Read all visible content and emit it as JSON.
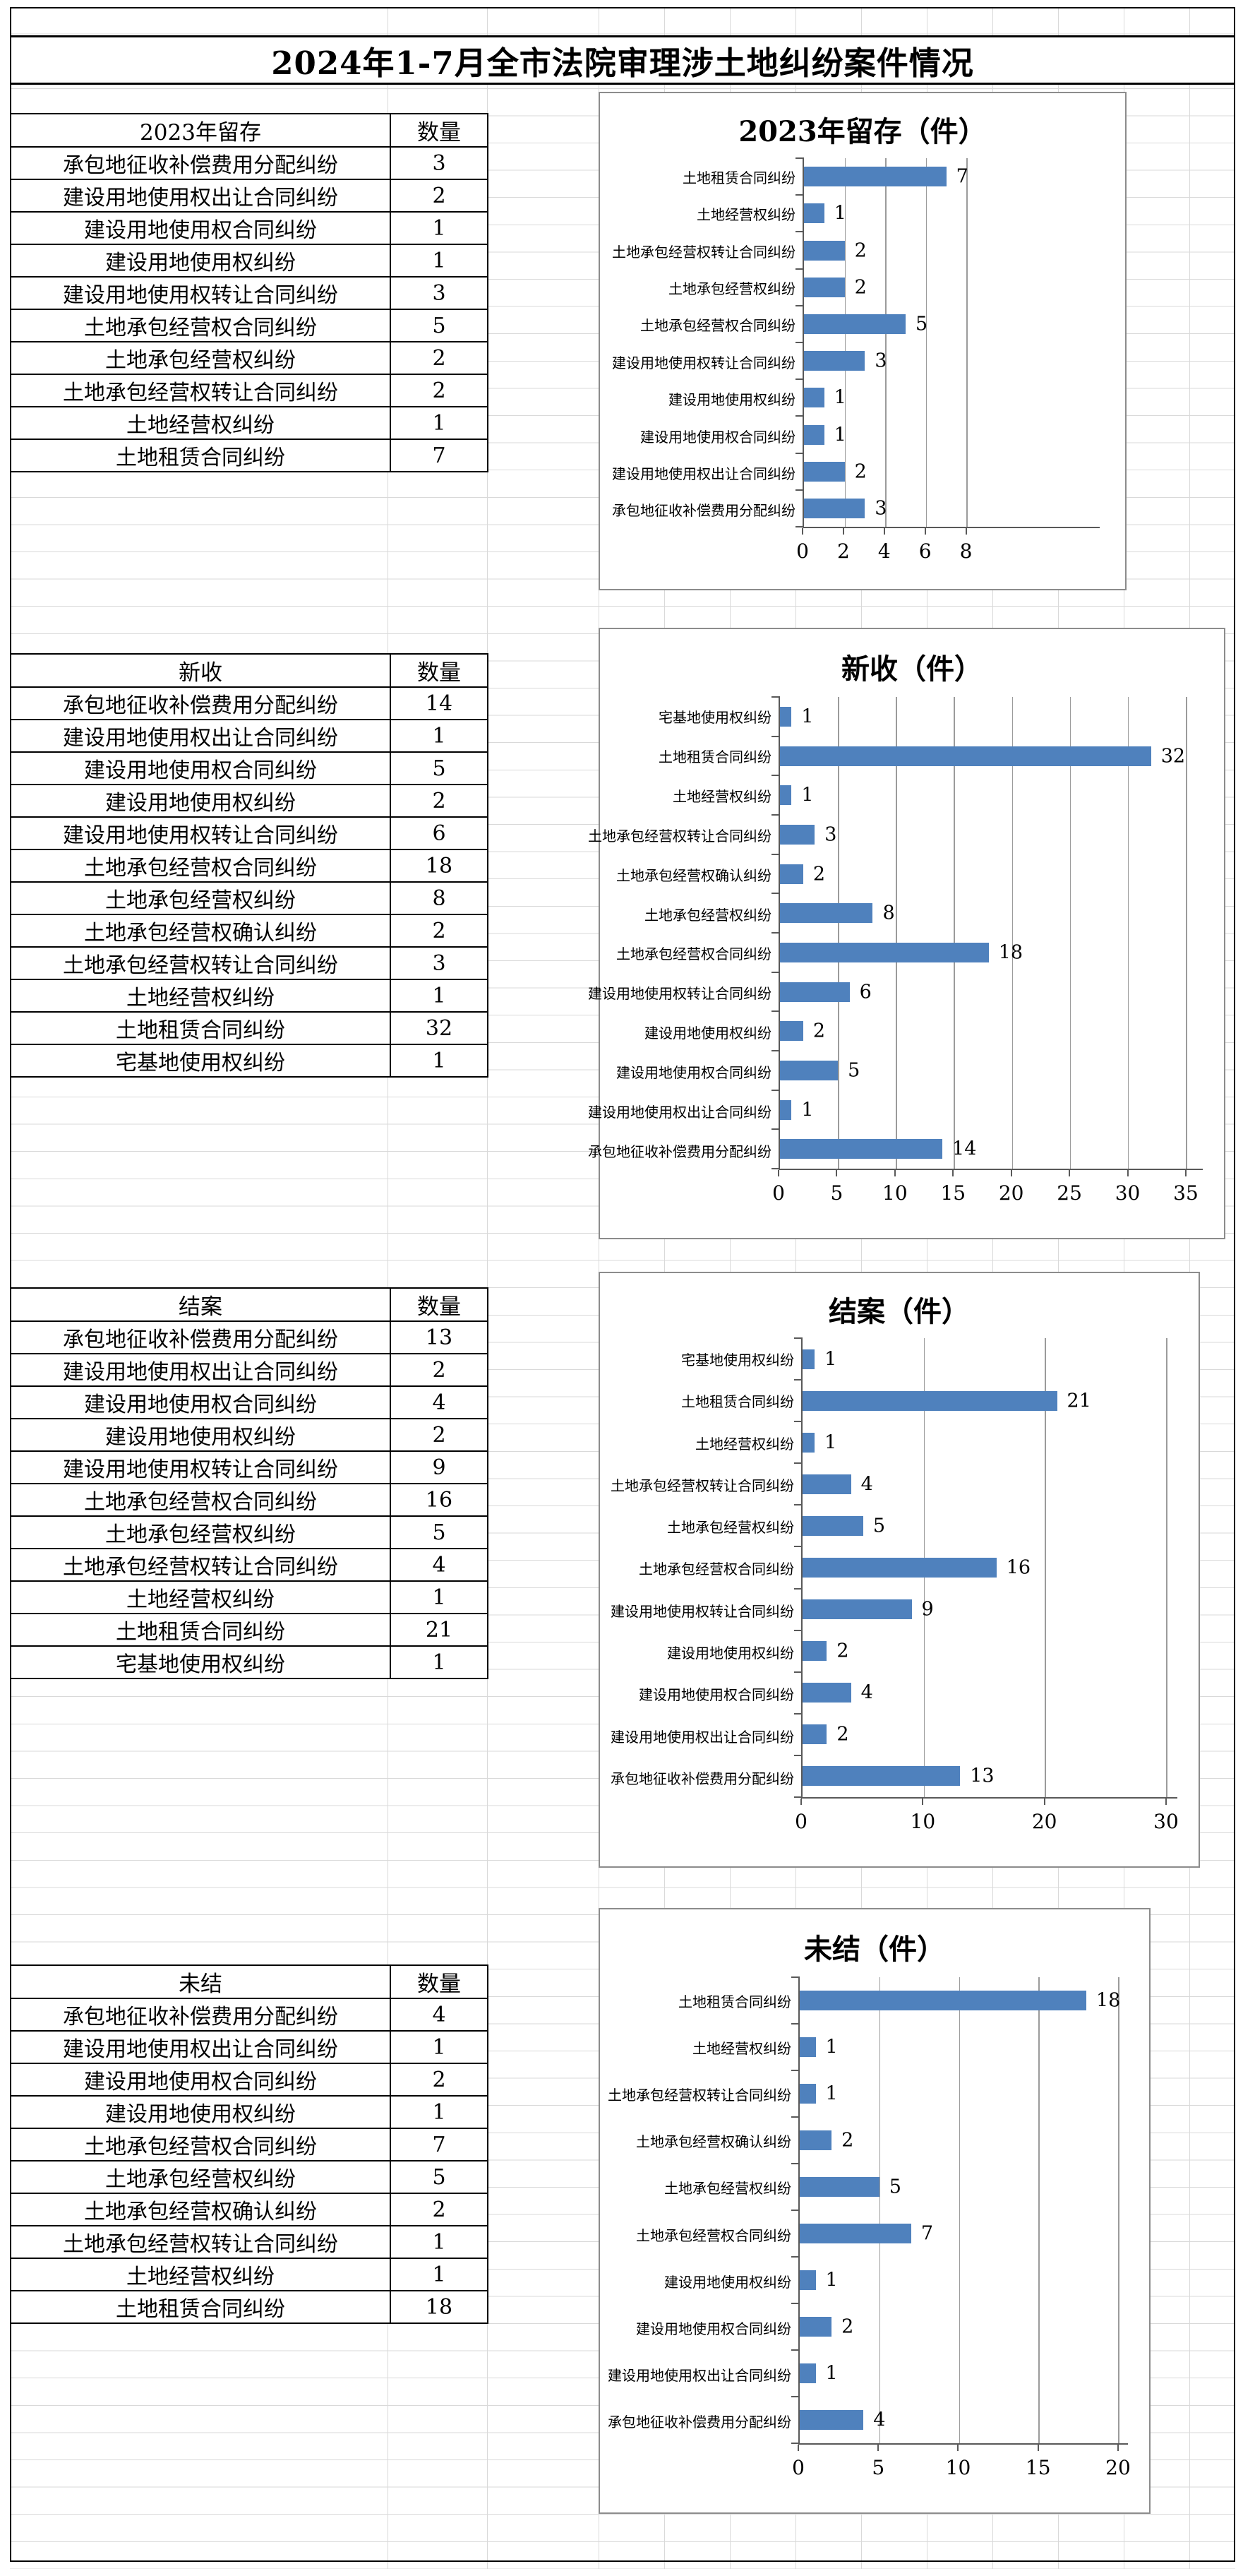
{
  "sheet": {
    "title": "2024年1-7月全市法院审理涉土地纠纷案件情况"
  },
  "sections": [
    {
      "table_title": "2023年留存",
      "qty_header": "数量",
      "rows": [
        {
          "label": "承包地征收补偿费用分配纠纷",
          "value": 3
        },
        {
          "label": "建设用地使用权出让合同纠纷",
          "value": 2
        },
        {
          "label": "建设用地使用权合同纠纷",
          "value": 1
        },
        {
          "label": "建设用地使用权纠纷",
          "value": 1
        },
        {
          "label": "建设用地使用权转让合同纠纷",
          "value": 3
        },
        {
          "label": "土地承包经营权合同纠纷",
          "value": 5
        },
        {
          "label": "土地承包经营权纠纷",
          "value": 2
        },
        {
          "label": "土地承包经营权转让合同纠纷",
          "value": 2
        },
        {
          "label": "土地经营权纠纷",
          "value": 1
        },
        {
          "label": "土地租赁合同纠纷",
          "value": 7
        }
      ]
    },
    {
      "table_title": "新收",
      "qty_header": "数量",
      "rows": [
        {
          "label": "承包地征收补偿费用分配纠纷",
          "value": 14
        },
        {
          "label": "建设用地使用权出让合同纠纷",
          "value": 1
        },
        {
          "label": "建设用地使用权合同纠纷",
          "value": 5
        },
        {
          "label": "建设用地使用权纠纷",
          "value": 2
        },
        {
          "label": "建设用地使用权转让合同纠纷",
          "value": 6
        },
        {
          "label": "土地承包经营权合同纠纷",
          "value": 18
        },
        {
          "label": "土地承包经营权纠纷",
          "value": 8
        },
        {
          "label": "土地承包经营权确认纠纷",
          "value": 2
        },
        {
          "label": "土地承包经营权转让合同纠纷",
          "value": 3
        },
        {
          "label": "土地经营权纠纷",
          "value": 1
        },
        {
          "label": "土地租赁合同纠纷",
          "value": 32
        },
        {
          "label": "宅基地使用权纠纷",
          "value": 1
        }
      ]
    },
    {
      "table_title": "结案",
      "qty_header": "数量",
      "rows": [
        {
          "label": "承包地征收补偿费用分配纠纷",
          "value": 13
        },
        {
          "label": "建设用地使用权出让合同纠纷",
          "value": 2
        },
        {
          "label": "建设用地使用权合同纠纷",
          "value": 4
        },
        {
          "label": "建设用地使用权纠纷",
          "value": 2
        },
        {
          "label": "建设用地使用权转让合同纠纷",
          "value": 9
        },
        {
          "label": "土地承包经营权合同纠纷",
          "value": 16
        },
        {
          "label": "土地承包经营权纠纷",
          "value": 5
        },
        {
          "label": "土地承包经营权转让合同纠纷",
          "value": 4
        },
        {
          "label": "土地经营权纠纷",
          "value": 1
        },
        {
          "label": "土地租赁合同纠纷",
          "value": 21
        },
        {
          "label": "宅基地使用权纠纷",
          "value": 1
        }
      ]
    },
    {
      "table_title": "未结",
      "qty_header": "数量",
      "rows": [
        {
          "label": "承包地征收补偿费用分配纠纷",
          "value": 4
        },
        {
          "label": "建设用地使用权出让合同纠纷",
          "value": 1
        },
        {
          "label": "建设用地使用权合同纠纷",
          "value": 2
        },
        {
          "label": "建设用地使用权纠纷",
          "value": 1
        },
        {
          "label": "土地承包经营权合同纠纷",
          "value": 7
        },
        {
          "label": "土地承包经营权纠纷",
          "value": 5
        },
        {
          "label": "土地承包经营权确认纠纷",
          "value": 2
        },
        {
          "label": "土地承包经营权转让合同纠纷",
          "value": 1
        },
        {
          "label": "土地经营权纠纷",
          "value": 1
        },
        {
          "label": "土地租赁合同纠纷",
          "value": 18
        }
      ]
    }
  ],
  "chart_data": [
    {
      "type": "bar",
      "orientation": "horizontal",
      "title": "2023年留存（件）",
      "categories": [
        "土地租赁合同纠纷",
        "土地经营权纠纷",
        "土地承包经营权转让合同纠纷",
        "土地承包经营权纠纷",
        "土地承包经营权合同纠纷",
        "建设用地使用权转让合同纠纷",
        "建设用地使用权纠纷",
        "建设用地使用权合同纠纷",
        "建设用地使用权出让合同纠纷",
        "承包地征收补偿费用分配纠纷"
      ],
      "values": [
        7,
        1,
        2,
        2,
        5,
        3,
        1,
        1,
        2,
        3
      ],
      "xlim": [
        0,
        8
      ],
      "xtick_step": 2,
      "grid": true,
      "legend": "none",
      "bar_color": "#4F81BD"
    },
    {
      "type": "bar",
      "orientation": "horizontal",
      "title": "新收（件）",
      "categories": [
        "宅基地使用权纠纷",
        "土地租赁合同纠纷",
        "土地经营权纠纷",
        "土地承包经营权转让合同纠纷",
        "土地承包经营权确认纠纷",
        "土地承包经营权纠纷",
        "土地承包经营权合同纠纷",
        "建设用地使用权转让合同纠纷",
        "建设用地使用权纠纷",
        "建设用地使用权合同纠纷",
        "建设用地使用权出让合同纠纷",
        "承包地征收补偿费用分配纠纷"
      ],
      "values": [
        1,
        32,
        1,
        3,
        2,
        8,
        18,
        6,
        2,
        5,
        1,
        14
      ],
      "xlim": [
        0,
        35
      ],
      "xtick_step": 5,
      "grid": true,
      "legend": "none",
      "bar_color": "#4F81BD"
    },
    {
      "type": "bar",
      "orientation": "horizontal",
      "title": "结案（件）",
      "categories": [
        "宅基地使用权纠纷",
        "土地租赁合同纠纷",
        "土地经营权纠纷",
        "土地承包经营权转让合同纠纷",
        "土地承包经营权纠纷",
        "土地承包经营权合同纠纷",
        "建设用地使用权转让合同纠纷",
        "建设用地使用权纠纷",
        "建设用地使用权合同纠纷",
        "建设用地使用权出让合同纠纷",
        "承包地征收补偿费用分配纠纷"
      ],
      "values": [
        1,
        21,
        1,
        4,
        5,
        16,
        9,
        2,
        4,
        2,
        13
      ],
      "xlim": [
        0,
        30
      ],
      "xtick_step": 10,
      "grid": true,
      "legend": "none",
      "bar_color": "#4F81BD"
    },
    {
      "type": "bar",
      "orientation": "horizontal",
      "title": "未结（件）",
      "categories": [
        "土地租赁合同纠纷",
        "土地经营权纠纷",
        "土地承包经营权转让合同纠纷",
        "土地承包经营权确认纠纷",
        "土地承包经营权纠纷",
        "土地承包经营权合同纠纷",
        "建设用地使用权纠纷",
        "建设用地使用权合同纠纷",
        "建设用地使用权出让合同纠纷",
        "承包地征收补偿费用分配纠纷"
      ],
      "values": [
        18,
        1,
        1,
        2,
        5,
        7,
        1,
        2,
        1,
        4
      ],
      "xlim": [
        0,
        20
      ],
      "xtick_step": 5,
      "grid": true,
      "legend": "none",
      "bar_color": "#4F81BD"
    }
  ]
}
